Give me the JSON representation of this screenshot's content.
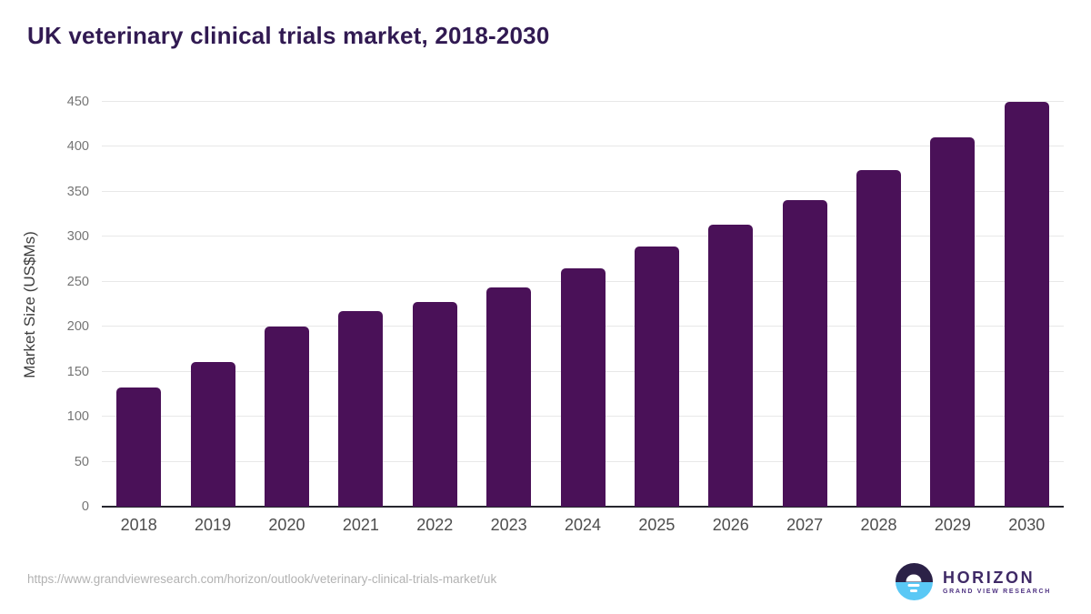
{
  "title": "UK veterinary clinical trials market, 2018-2030",
  "footer": {
    "source_url": "https://www.grandviewresearch.com/horizon/outlook/veterinary-clinical-trials-market/uk"
  },
  "logo": {
    "name": "HORIZON",
    "subtitle": "GRAND VIEW RESEARCH"
  },
  "colors": {
    "bar": "#4a1158",
    "title": "#311a52",
    "gridline": "#e8e8e8",
    "axis_line": "#26262e",
    "x_tick": "#4d4d4d",
    "y_tick": "#757575",
    "url": "#b2b2b2",
    "logo_dark_half": "#2b2147",
    "logo_blue_half": "#5ac8f5"
  },
  "chart_data": {
    "type": "bar",
    "title": "UK veterinary clinical trials market, 2018-2030",
    "xlabel": "",
    "ylabel": "Market Size (US$Ms)",
    "categories": [
      "2018",
      "2019",
      "2020",
      "2021",
      "2022",
      "2023",
      "2024",
      "2025",
      "2026",
      "2027",
      "2028",
      "2029",
      "2030"
    ],
    "values": [
      132,
      161,
      200,
      217,
      228,
      244,
      265,
      289,
      314,
      341,
      374,
      411,
      450
    ],
    "ylim": [
      0,
      450
    ],
    "yticks": [
      0,
      50,
      100,
      150,
      200,
      250,
      300,
      350,
      400,
      450
    ],
    "grid": true,
    "legend": false,
    "bar_color": "#4a1158"
  }
}
